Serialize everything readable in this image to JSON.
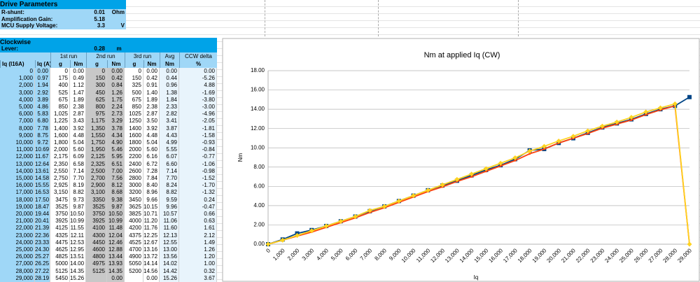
{
  "params": {
    "title": "Drive Parameters",
    "rows": [
      {
        "label": "R-shunt:",
        "value": "0.01",
        "unit": "Ohm"
      },
      {
        "label": "Amplification Gain:",
        "value": "5.18"
      },
      {
        "label": "MCU Supply Voltage:",
        "value": "3.3",
        "unit": "V"
      }
    ]
  },
  "clockwise": {
    "title": "Clockwise",
    "lever": {
      "label": "Lever:",
      "value": "0.28",
      "unit": "m"
    }
  },
  "table": {
    "group_headers": [
      "1st run",
      "2nd run",
      "3rd run",
      "Avg",
      "CCW delta"
    ],
    "headers": [
      "Iq (I16A)",
      "Iq (A)",
      "g",
      "Nm",
      "g",
      "Nm",
      "g",
      "Nm",
      "Nm",
      "%"
    ],
    "rows": [
      [
        "0",
        "0.00",
        "0",
        "0.00",
        "0",
        "0.00",
        "0",
        "0.00",
        "0.00",
        "0.00"
      ],
      [
        "1,000",
        "0.97",
        "175",
        "0.49",
        "150",
        "0.42",
        "150",
        "0.42",
        "0.44",
        "-5.26"
      ],
      [
        "2,000",
        "1.94",
        "400",
        "1.12",
        "300",
        "0.84",
        "325",
        "0.91",
        "0.96",
        "4.88"
      ],
      [
        "3,000",
        "2.92",
        "525",
        "1.47",
        "450",
        "1.26",
        "500",
        "1.40",
        "1.38",
        "-1.69"
      ],
      [
        "4,000",
        "3.89",
        "675",
        "1.89",
        "625",
        "1.75",
        "675",
        "1.89",
        "1.84",
        "-3.80"
      ],
      [
        "5,000",
        "4.86",
        "850",
        "2.38",
        "800",
        "2.24",
        "850",
        "2.38",
        "2.33",
        "-3.00"
      ],
      [
        "6,000",
        "5.83",
        "1,025",
        "2.87",
        "975",
        "2.73",
        "1025",
        "2.87",
        "2.82",
        "-4.96"
      ],
      [
        "7,000",
        "6.80",
        "1,225",
        "3.43",
        "1,175",
        "3.29",
        "1250",
        "3.50",
        "3.41",
        "-2.05"
      ],
      [
        "8,000",
        "7.78",
        "1,400",
        "3.92",
        "1,350",
        "3.78",
        "1400",
        "3.92",
        "3.87",
        "-1.81"
      ],
      [
        "9,000",
        "8.75",
        "1,600",
        "4.48",
        "1,550",
        "4.34",
        "1600",
        "4.48",
        "4.43",
        "-1.58"
      ],
      [
        "10,000",
        "9.72",
        "1,800",
        "5.04",
        "1,750",
        "4.90",
        "1800",
        "5.04",
        "4.99",
        "-0.93"
      ],
      [
        "11,000",
        "10.69",
        "2,000",
        "5.60",
        "1,950",
        "5.46",
        "2000",
        "5.60",
        "5.55",
        "-0.84"
      ],
      [
        "12,000",
        "11.67",
        "2,175",
        "6.09",
        "2,125",
        "5.95",
        "2200",
        "6.16",
        "6.07",
        "-0.77"
      ],
      [
        "13,000",
        "12.64",
        "2,350",
        "6.58",
        "2,325",
        "6.51",
        "2400",
        "6.72",
        "6.60",
        "-1.06"
      ],
      [
        "14,000",
        "13.61",
        "2,550",
        "7.14",
        "2,500",
        "7.00",
        "2600",
        "7.28",
        "7.14",
        "-0.98"
      ],
      [
        "15,000",
        "14.58",
        "2,750",
        "7.70",
        "2,700",
        "7.56",
        "2800",
        "7.84",
        "7.70",
        "-1.52"
      ],
      [
        "16,000",
        "15.55",
        "2,925",
        "8.19",
        "2,900",
        "8.12",
        "3000",
        "8.40",
        "8.24",
        "-1.70"
      ],
      [
        "17,000",
        "16.53",
        "3,150",
        "8.82",
        "3,100",
        "8.68",
        "3200",
        "8.96",
        "8.82",
        "-1.32"
      ],
      [
        "18,000",
        "17.50",
        "3475",
        "9.73",
        "3350",
        "9.38",
        "3450",
        "9.66",
        "9.59",
        "0.24"
      ],
      [
        "19,000",
        "18.47",
        "3525",
        "9.87",
        "3525",
        "9.87",
        "3625",
        "10.15",
        "9.96",
        "-0.47"
      ],
      [
        "20,000",
        "19.44",
        "3750",
        "10.50",
        "3750",
        "10.50",
        "3825",
        "10.71",
        "10.57",
        "0.66"
      ],
      [
        "21,000",
        "20.41",
        "3925",
        "10.99",
        "3925",
        "10.99",
        "4000",
        "11.20",
        "11.06",
        "0.63"
      ],
      [
        "22,000",
        "21.39",
        "4125",
        "11.55",
        "4100",
        "11.48",
        "4200",
        "11.76",
        "11.60",
        "1.61"
      ],
      [
        "23,000",
        "22.36",
        "4325",
        "12.11",
        "4300",
        "12.04",
        "4375",
        "12.25",
        "12.13",
        "2.12"
      ],
      [
        "24,000",
        "23.33",
        "4475",
        "12.53",
        "4450",
        "12.46",
        "4525",
        "12.67",
        "12.55",
        "1.49"
      ],
      [
        "25,000",
        "24.30",
        "4625",
        "12.95",
        "4600",
        "12.88",
        "4700",
        "13.16",
        "13.00",
        "1.26"
      ],
      [
        "26,000",
        "25.27",
        "4825",
        "13.51",
        "4800",
        "13.44",
        "4900",
        "13.72",
        "13.56",
        "1.20"
      ],
      [
        "27,000",
        "26.25",
        "5000",
        "14.00",
        "4975",
        "13.93",
        "5050",
        "14.14",
        "14.02",
        "1.00"
      ],
      [
        "28,000",
        "27.22",
        "5125",
        "14.35",
        "5125",
        "14.35",
        "5200",
        "14.56",
        "14.42",
        "0.32"
      ],
      [
        "29,000",
        "28.19",
        "5450",
        "15.26",
        null,
        "0.00",
        null,
        "0.00",
        "15.26",
        "3.67"
      ]
    ]
  },
  "chart_data": {
    "type": "line",
    "title": "Nm at applied Iq (CW)",
    "x_label": "Iq",
    "y_label": "Nm",
    "categories": [
      "0",
      "1,000",
      "2,000",
      "3,000",
      "4,000",
      "5,000",
      "6,000",
      "7,000",
      "8,000",
      "9,000",
      "10,000",
      "11,000",
      "12,000",
      "13,000",
      "14,000",
      "15,000",
      "16,000",
      "17,000",
      "18,000",
      "19,000",
      "20,000",
      "21,000",
      "22,000",
      "23,000",
      "24,000",
      "25,000",
      "26,000",
      "27,000",
      "28,000",
      "29,000"
    ],
    "series": [
      {
        "color": "#004586",
        "marker": "square",
        "values": [
          0,
          0.49,
          1.12,
          1.47,
          1.89,
          2.38,
          2.87,
          3.43,
          3.92,
          4.48,
          5.04,
          5.6,
          6.09,
          6.58,
          7.14,
          7.7,
          8.19,
          8.82,
          9.73,
          9.87,
          10.5,
          10.99,
          11.55,
          12.11,
          12.53,
          12.95,
          13.51,
          14.0,
          14.35,
          15.26
        ]
      },
      {
        "color": "#ff420e",
        "marker": "circle",
        "values": [
          0,
          0.42,
          0.84,
          1.26,
          1.75,
          2.24,
          2.73,
          3.29,
          3.78,
          4.34,
          4.9,
          5.46,
          5.95,
          6.51,
          7.0,
          7.56,
          8.12,
          8.68,
          9.38,
          9.87,
          10.5,
          10.99,
          11.48,
          12.04,
          12.46,
          12.88,
          13.44,
          13.93,
          14.35,
          0
        ]
      },
      {
        "color": "#ffd320",
        "marker": "diamond",
        "values": [
          0,
          0.42,
          0.91,
          1.4,
          1.89,
          2.38,
          2.87,
          3.5,
          3.92,
          4.48,
          5.04,
          5.6,
          6.16,
          6.72,
          7.28,
          7.84,
          8.4,
          8.96,
          9.66,
          10.15,
          10.71,
          11.2,
          11.76,
          12.25,
          12.67,
          13.16,
          13.72,
          14.14,
          14.56,
          0
        ]
      }
    ],
    "ylim": [
      0,
      18
    ],
    "yticks": [
      {
        "value": 0,
        "label": "0.00"
      },
      {
        "value": 2,
        "label": "2.00"
      },
      {
        "value": 4,
        "label": "4.00"
      },
      {
        "value": 6,
        "label": "6.00"
      },
      {
        "value": 8,
        "label": "8.00"
      },
      {
        "value": 10,
        "label": "10.00"
      },
      {
        "value": 12,
        "label": "12.00"
      },
      {
        "value": 14,
        "label": "14.00"
      },
      {
        "value": 16,
        "label": "16.00"
      },
      {
        "value": 18,
        "label": "18.00"
      }
    ],
    "grid": true
  }
}
